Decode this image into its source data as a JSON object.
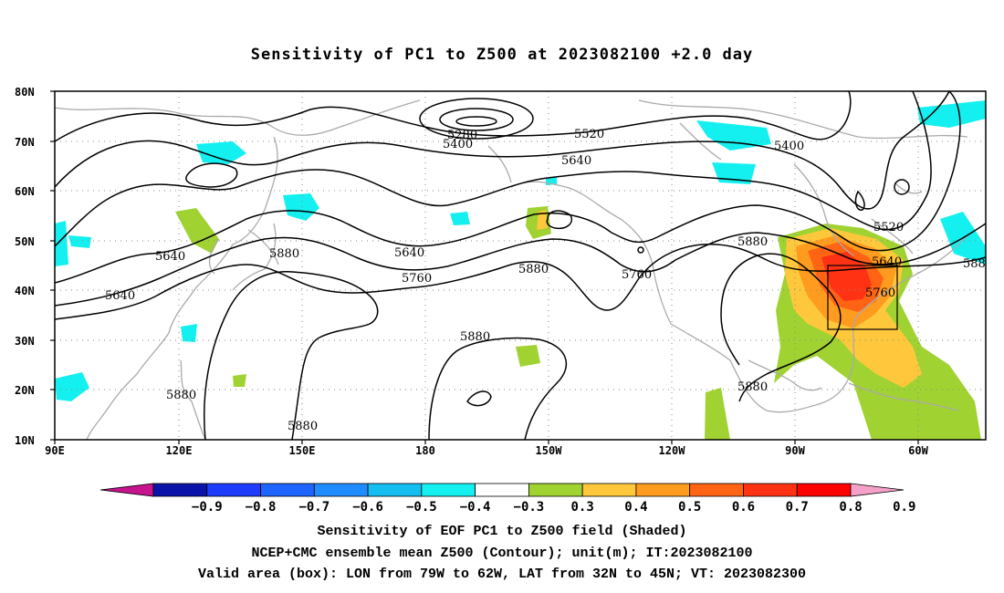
{
  "title": "Sensitivity of PC1 to Z500 at 2023082100 +2.0 day",
  "axes": {
    "lat_labels": [
      "80N",
      "70N",
      "60N",
      "50N",
      "40N",
      "30N",
      "20N",
      "10N"
    ],
    "lon_labels": [
      "90E",
      "120E",
      "150E",
      "180",
      "150W",
      "120W",
      "90W",
      "60W"
    ]
  },
  "contour_labels": [
    "5280",
    "5400",
    "5520",
    "5640",
    "5400",
    "5520",
    "5640",
    "5640",
    "5760",
    "5640",
    "5760",
    "5880",
    "5880",
    "5880",
    "5760",
    "5880",
    "5640",
    "5760",
    "588",
    "5880",
    "5880",
    "5880"
  ],
  "colorbar": {
    "ticks": [
      "−0.9",
      "−0.8",
      "−0.7",
      "−0.6",
      "−0.5",
      "−0.4",
      "−0.3",
      "0.3",
      "0.4",
      "0.5",
      "0.6",
      "0.7",
      "0.8",
      "0.9"
    ],
    "colors": [
      "#c8138e",
      "#0a14a8",
      "#1e3cff",
      "#1e64ff",
      "#1e8cff",
      "#14bef0",
      "#14f0f0",
      "#ffffff",
      "#a0d232",
      "#ffc83c",
      "#ff9b1e",
      "#ff6414",
      "#ff3214",
      "#ff0000",
      "#f5a0c8"
    ]
  },
  "captions": [
    "Sensitivity of EOF PC1 to Z500 field (Shaded)",
    "NCEP+CMC ensemble mean Z500 (Contour); unit(m); IT:2023082100",
    "Valid area (box): LON from 79W to 62W, LAT from 32N to 45N; VT: 2023082300"
  ]
}
